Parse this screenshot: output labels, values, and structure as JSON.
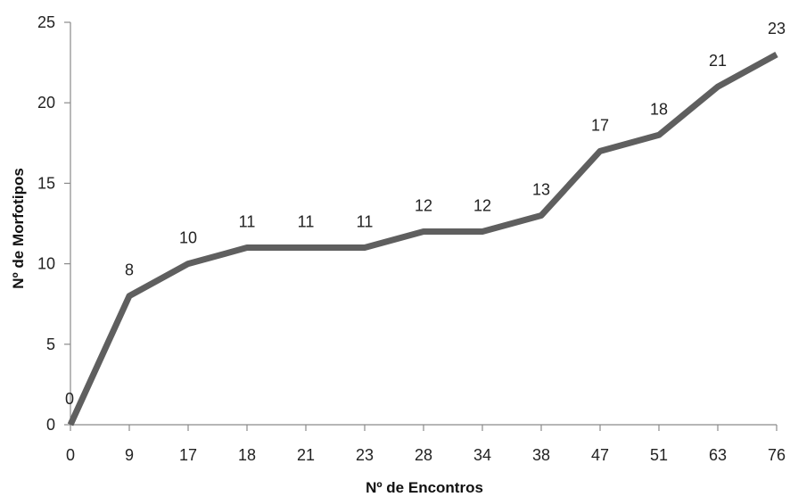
{
  "chart_data": {
    "type": "line",
    "title": "",
    "xlabel": "Nº de Encontros",
    "ylabel": "Nº de Morfotipos",
    "categories": [
      "0",
      "9",
      "17",
      "18",
      "21",
      "23",
      "28",
      "34",
      "38",
      "47",
      "51",
      "63",
      "76"
    ],
    "series": [
      {
        "values": [
          0,
          8,
          10,
          11,
          11,
          11,
          12,
          12,
          13,
          17,
          18,
          21,
          23
        ],
        "color": "#5f5f5f"
      }
    ],
    "ylim": [
      0,
      25
    ],
    "yticks": [
      "0",
      "5",
      "10",
      "15",
      "20",
      "25"
    ],
    "data_labels": [
      "0",
      "8",
      "10",
      "11",
      "11",
      "11",
      "12",
      "12",
      "13",
      "17",
      "18",
      "21",
      "23"
    ],
    "grid": false,
    "legend": "none"
  }
}
